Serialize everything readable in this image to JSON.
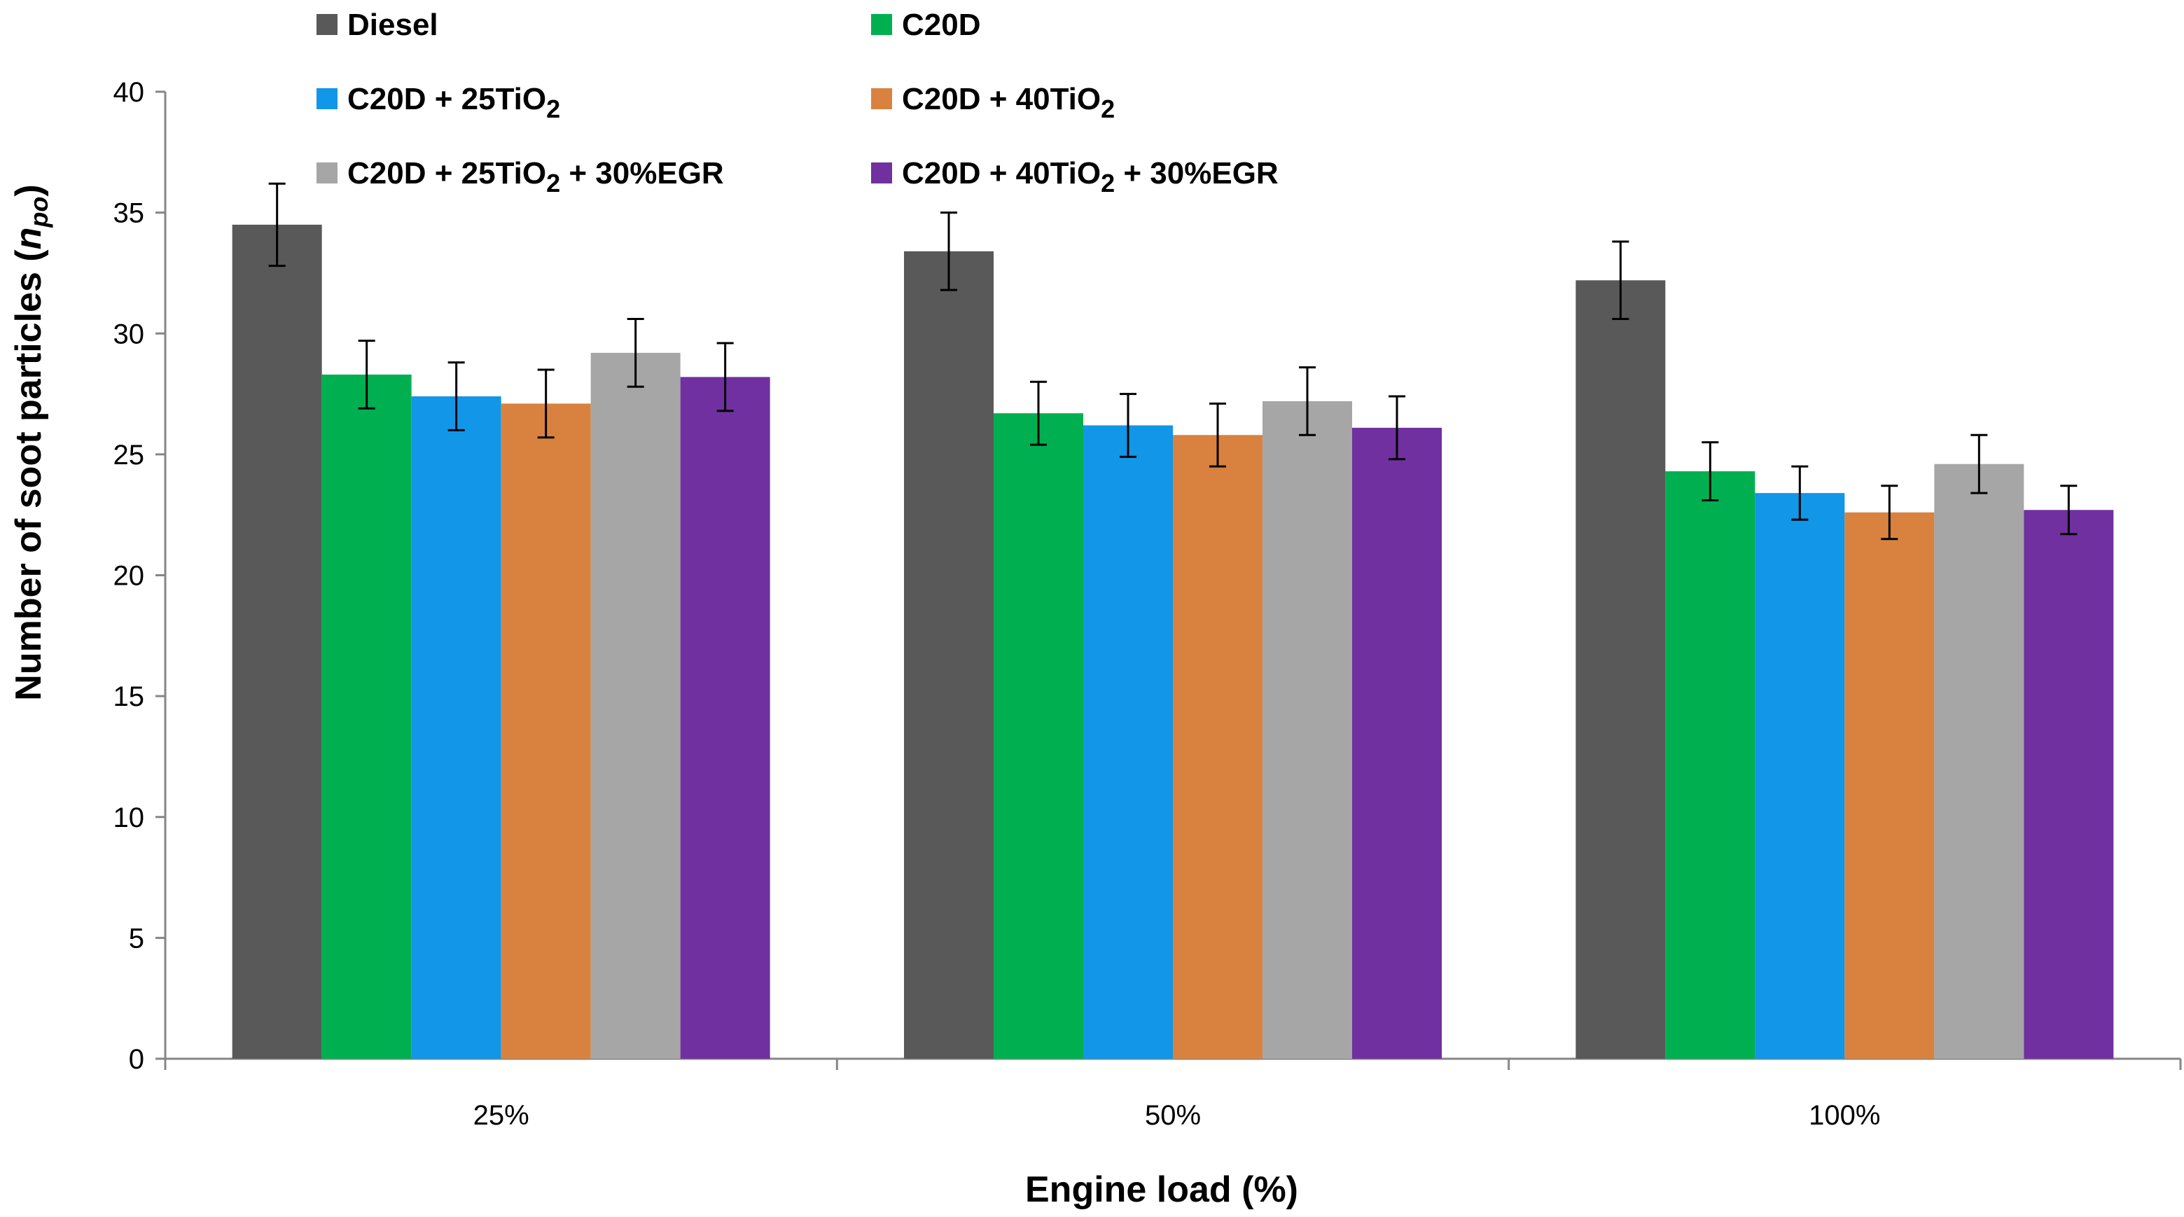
{
  "chart_data": {
    "type": "bar",
    "title": "",
    "xlabel": "Engine load (%)",
    "ylabel": {
      "text": "Number of soot particles (",
      "symbol": "n",
      "subscript": "po",
      "close": ")"
    },
    "categories": [
      "25%",
      "50%",
      "100%"
    ],
    "ylim": [
      0,
      40
    ],
    "yticks": [
      0,
      5,
      10,
      15,
      20,
      25,
      30,
      35,
      40
    ],
    "grid": false,
    "error_bars": true,
    "legend_position": "top",
    "series": [
      {
        "name": "Diesel",
        "legend": {
          "text": "Diesel",
          "sub": "",
          "suffix": ""
        },
        "color": "#595959",
        "values": [
          34.5,
          33.4,
          32.2
        ],
        "errors": [
          1.7,
          1.6,
          1.6
        ]
      },
      {
        "name": "C20D",
        "legend": {
          "text": "C20D",
          "sub": "",
          "suffix": ""
        },
        "color": "#00b050",
        "values": [
          28.3,
          26.7,
          24.3
        ],
        "errors": [
          1.4,
          1.3,
          1.2
        ]
      },
      {
        "name": "C20D + 25TiO2",
        "legend": {
          "text": "C20D + 25TiO",
          "sub": "2",
          "suffix": ""
        },
        "color": "#1296e8",
        "values": [
          27.4,
          26.2,
          23.4
        ],
        "errors": [
          1.4,
          1.3,
          1.1
        ]
      },
      {
        "name": "C20D + 40TiO2",
        "legend": {
          "text": "C20D + 40TiO",
          "sub": "2",
          "suffix": ""
        },
        "color": "#d9823f",
        "values": [
          27.1,
          25.8,
          22.6
        ],
        "errors": [
          1.4,
          1.3,
          1.1
        ]
      },
      {
        "name": "C20D + 25TiO2 + 30%EGR",
        "legend": {
          "text": "C20D + 25TiO",
          "sub": "2",
          "suffix": " + 30%EGR"
        },
        "color": "#a6a6a6",
        "values": [
          29.2,
          27.2,
          24.6
        ],
        "errors": [
          1.4,
          1.4,
          1.2
        ]
      },
      {
        "name": "C20D + 40TiO2 + 30%EGR",
        "legend": {
          "text": "C20D + 40TiO",
          "sub": "2",
          "suffix": " + 30%EGR"
        },
        "color": "#7030a0",
        "values": [
          28.2,
          26.1,
          22.7
        ],
        "errors": [
          1.4,
          1.3,
          1.0
        ]
      }
    ]
  }
}
